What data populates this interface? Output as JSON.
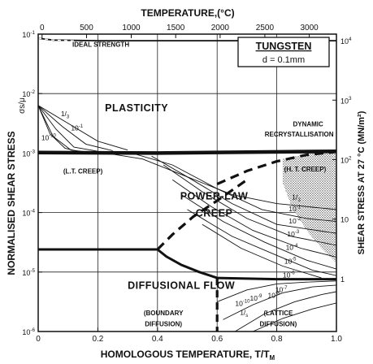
{
  "chart_data": {
    "type": "line",
    "title": "TUNGSTEN",
    "subtitle": "d = 0.1mm",
    "xlabel": "HOMOLOGOUS TEMPERATURE, T/T",
    "xlabel_sub": "M",
    "ylabel": "NORMALISED SHEAR STRESS",
    "ylabel_symbol": "σs/μ",
    "top_axis_label": "TEMPERATURE,(°C)",
    "right_axis_label": "SHEAR STRESS AT 27 °C (MN/m²)",
    "xlim": [
      0,
      1
    ],
    "ylim_log10": [
      -6,
      -1
    ],
    "log_y": true,
    "grid": true,
    "x_ticks": [
      {
        "v": 0,
        "label": "0"
      },
      {
        "v": 0.2,
        "label": "0.2"
      },
      {
        "v": 0.4,
        "label": "0.4"
      },
      {
        "v": 0.6,
        "label": "0.6"
      },
      {
        "v": 0.8,
        "label": "0.8"
      },
      {
        "v": 1.0,
        "label": "1.0"
      }
    ],
    "y_ticks": [
      {
        "exp": -1,
        "base": "10",
        "sup": "-1"
      },
      {
        "exp": -2,
        "base": "10",
        "sup": "-2"
      },
      {
        "exp": -3,
        "base": "10",
        "sup": "-3"
      },
      {
        "exp": -4,
        "base": "10",
        "sup": "-4"
      },
      {
        "exp": -5,
        "base": "10",
        "sup": "-5"
      },
      {
        "exp": -6,
        "base": "10",
        "sup": "-6"
      }
    ],
    "top_ticks": [
      {
        "v": 0.013,
        "label": "0"
      },
      {
        "v": 0.162,
        "label": "500"
      },
      {
        "v": 0.312,
        "label": "1000"
      },
      {
        "v": 0.461,
        "label": "1500"
      },
      {
        "v": 0.61,
        "label": "2000"
      },
      {
        "v": 0.76,
        "label": "2500"
      },
      {
        "v": 0.909,
        "label": "3000"
      }
    ],
    "right_ticks": [
      {
        "exp": -1.11,
        "base": "10",
        "sup": "4"
      },
      {
        "exp": -2.11,
        "base": "10",
        "sup": "3"
      },
      {
        "exp": -3.11,
        "base": "10",
        "sup": "2"
      },
      {
        "exp": -4.11,
        "base": "10",
        "sup": ""
      },
      {
        "exp": -5.11,
        "base": "1",
        "sup": ""
      }
    ],
    "regions": [
      {
        "label": "PLASTICITY",
        "x": 0.33,
        "y_exp": -2.3
      },
      {
        "label": "POWER-LAW",
        "x": 0.59,
        "y_exp": -3.78
      },
      {
        "label": "CREEP",
        "x": 0.59,
        "y_exp": -4.07
      },
      {
        "label": "DIFFUSIONAL  FLOW",
        "x": 0.48,
        "y_exp": -5.28
      }
    ],
    "annotations": [
      {
        "label": "IDEAL STRENGTH",
        "x": 0.21,
        "y_exp": -1.21
      },
      {
        "label": "DYNAMIC",
        "x": 0.905,
        "y_exp": -2.55
      },
      {
        "label": "RECRYSTALLISATION",
        "x": 0.875,
        "y_exp": -2.72
      },
      {
        "label": "(L.T. CREEP)",
        "x": 0.15,
        "y_exp": -3.34
      },
      {
        "label": "(H. T. CREEP)",
        "x": 0.895,
        "y_exp": -3.31
      },
      {
        "label": "(BOUNDARY",
        "x": 0.42,
        "y_exp": -5.73
      },
      {
        "label": "DIFFUSION)",
        "x": 0.42,
        "y_exp": -5.91
      },
      {
        "label": "(LATTICE",
        "x": 0.805,
        "y_exp": -5.73
      },
      {
        "label": "DIFFUSION)",
        "x": 0.805,
        "y_exp": -5.91
      }
    ],
    "contour_labels": [
      {
        "base": "1/",
        "sub": "3",
        "x": 0.09,
        "y_exp": -2.38
      },
      {
        "base": "10",
        "sup": "-1",
        "x": 0.13,
        "y_exp": -2.62
      },
      {
        "base": "10",
        "sup": "-10",
        "x": 0.035,
        "y_exp": -2.78
      },
      {
        "base": "1/",
        "sub": "3",
        "x": 0.865,
        "y_exp": -3.78
      },
      {
        "base": "10",
        "sup": "-1",
        "x": 0.86,
        "y_exp": -3.98
      },
      {
        "base": "10",
        "sup": "-2",
        "x": 0.86,
        "y_exp": -4.18
      },
      {
        "base": "10",
        "sup": "-3",
        "x": 0.855,
        "y_exp": -4.4
      },
      {
        "base": "10",
        "sup": "-4",
        "x": 0.85,
        "y_exp": -4.63
      },
      {
        "base": "10",
        "sup": "-5",
        "x": 0.845,
        "y_exp": -4.86
      },
      {
        "base": "10",
        "sup": "-6",
        "x": 0.84,
        "y_exp": -5.09
      },
      {
        "base": "10",
        "sup": "-7",
        "x": 0.815,
        "y_exp": -5.34
      },
      {
        "base": "10",
        "sup": "-8",
        "x": 0.79,
        "y_exp": -5.43
      },
      {
        "base": "10",
        "sup": "-9",
        "x": 0.73,
        "y_exp": -5.48
      },
      {
        "base": "10",
        "sup": "-10",
        "x": 0.685,
        "y_exp": -5.57
      },
      {
        "base": "1/",
        "sub": "s",
        "x": 0.69,
        "y_exp": -5.72
      }
    ],
    "boundaries": {
      "ideal_strength": [
        [
          0.0,
          -1.07
        ],
        [
          0.05,
          -1.1
        ],
        [
          0.2,
          -1.11
        ],
        [
          0.4,
          -1.11
        ],
        [
          1.0,
          -1.11
        ]
      ],
      "plasticity_bottom": [
        [
          0.0,
          -2.99
        ],
        [
          0.4,
          -3.0
        ],
        [
          1.0,
          -2.97
        ]
      ],
      "diffusion_top_left": [
        [
          0.0,
          -4.62
        ],
        [
          0.4,
          -4.62
        ]
      ],
      "diffusion_curve": [
        [
          0.4,
          -4.62
        ],
        [
          0.43,
          -4.74
        ],
        [
          0.48,
          -4.88
        ],
        [
          0.54,
          -5.0
        ],
        [
          0.6,
          -5.1
        ]
      ],
      "diffusion_top_right": [
        [
          0.6,
          -5.1
        ],
        [
          0.8,
          -5.12
        ],
        [
          1.0,
          -5.12
        ]
      ],
      "drx_dashed": [
        [
          0.6,
          -3.52
        ],
        [
          0.7,
          -3.3
        ],
        [
          0.8,
          -3.14
        ],
        [
          0.9,
          -3.03
        ],
        [
          1.0,
          -2.98
        ]
      ],
      "plc_diffusion_dashed": [
        [
          0.4,
          -4.62
        ],
        [
          0.45,
          -4.37
        ],
        [
          0.52,
          -4.07
        ],
        [
          0.6,
          -3.8
        ],
        [
          0.7,
          -3.45
        ]
      ],
      "boundary_lattice_dashed": [
        [
          0.6,
          -5.1
        ],
        [
          0.6,
          -6.0
        ]
      ],
      "ideal_dash_segment": [
        [
          0.0,
          -1.07
        ],
        [
          0.05,
          -1.1
        ],
        [
          0.12,
          -1.11
        ]
      ]
    },
    "contours": [
      [
        [
          0.0,
          -2.2
        ],
        [
          0.06,
          -2.6
        ],
        [
          0.12,
          -2.9
        ],
        [
          0.2,
          -2.97
        ]
      ],
      [
        [
          0.0,
          -2.2
        ],
        [
          0.08,
          -2.55
        ],
        [
          0.16,
          -2.85
        ],
        [
          0.25,
          -2.96
        ]
      ],
      [
        [
          0.0,
          -2.2
        ],
        [
          0.1,
          -2.5
        ],
        [
          0.2,
          -2.8
        ],
        [
          0.3,
          -2.95
        ]
      ],
      [
        [
          0.0,
          -2.2
        ],
        [
          0.04,
          -2.68
        ],
        [
          0.09,
          -2.92
        ],
        [
          0.14,
          -2.98
        ]
      ],
      [
        [
          0.0,
          -2.2
        ],
        [
          0.05,
          -2.72
        ],
        [
          0.11,
          -2.95
        ],
        [
          0.16,
          -2.98
        ]
      ],
      [
        [
          0.2,
          -2.98
        ],
        [
          0.35,
          -3.1
        ],
        [
          0.5,
          -3.4
        ],
        [
          0.65,
          -3.7
        ],
        [
          0.8,
          -3.85
        ],
        [
          1.0,
          -3.95
        ]
      ],
      [
        [
          0.3,
          -2.98
        ],
        [
          0.45,
          -3.2
        ],
        [
          0.6,
          -3.6
        ],
        [
          0.75,
          -3.95
        ],
        [
          0.9,
          -4.1
        ],
        [
          1.0,
          -4.15
        ]
      ],
      [
        [
          0.38,
          -3.05
        ],
        [
          0.5,
          -3.4
        ],
        [
          0.65,
          -3.85
        ],
        [
          0.8,
          -4.2
        ],
        [
          1.0,
          -4.35
        ]
      ],
      [
        [
          0.42,
          -3.2
        ],
        [
          0.55,
          -3.65
        ],
        [
          0.7,
          -4.1
        ],
        [
          0.85,
          -4.4
        ],
        [
          1.0,
          -4.55
        ]
      ],
      [
        [
          0.45,
          -3.45
        ],
        [
          0.58,
          -3.9
        ],
        [
          0.72,
          -4.3
        ],
        [
          0.88,
          -4.6
        ],
        [
          1.0,
          -4.75
        ]
      ],
      [
        [
          0.48,
          -3.7
        ],
        [
          0.62,
          -4.15
        ],
        [
          0.76,
          -4.5
        ],
        [
          0.9,
          -4.8
        ],
        [
          1.0,
          -4.95
        ]
      ],
      [
        [
          0.5,
          -3.95
        ],
        [
          0.65,
          -4.4
        ],
        [
          0.8,
          -4.72
        ],
        [
          0.92,
          -4.97
        ],
        [
          1.0,
          -5.06
        ]
      ],
      [
        [
          0.55,
          -4.2
        ],
        [
          0.68,
          -4.6
        ],
        [
          0.82,
          -4.9
        ],
        [
          0.95,
          -5.1
        ]
      ],
      [
        [
          0.6,
          -5.5
        ],
        [
          0.7,
          -5.3
        ],
        [
          0.8,
          -5.2
        ],
        [
          0.9,
          -5.17
        ],
        [
          1.0,
          -5.15
        ]
      ],
      [
        [
          0.62,
          -5.8
        ],
        [
          0.72,
          -5.55
        ],
        [
          0.82,
          -5.35
        ],
        [
          0.92,
          -5.25
        ],
        [
          1.0,
          -5.22
        ]
      ],
      [
        [
          0.66,
          -6.0
        ],
        [
          0.76,
          -5.7
        ],
        [
          0.86,
          -5.5
        ],
        [
          0.95,
          -5.38
        ],
        [
          1.0,
          -5.33
        ]
      ],
      [
        [
          0.72,
          -6.0
        ],
        [
          0.82,
          -5.78
        ],
        [
          0.92,
          -5.62
        ],
        [
          1.0,
          -5.52
        ]
      ]
    ],
    "hatched_region": [
      [
        0.82,
        -3.1
      ],
      [
        0.9,
        -3.02
      ],
      [
        1.0,
        -2.98
      ],
      [
        1.0,
        -4.85
      ],
      [
        0.95,
        -4.6
      ],
      [
        0.9,
        -4.3
      ],
      [
        0.85,
        -3.9
      ],
      [
        0.82,
        -3.5
      ]
    ]
  }
}
